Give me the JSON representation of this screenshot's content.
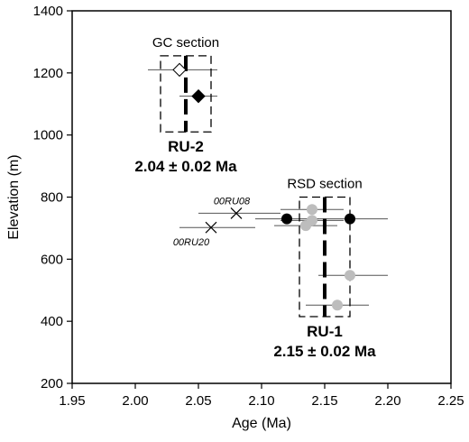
{
  "chart_data": {
    "type": "scatter",
    "xlabel": "Age (Ma)",
    "ylabel": "Elevation (m)",
    "xlim": [
      1.95,
      2.25
    ],
    "ylim": [
      200,
      1400
    ],
    "x_ticks": [
      "1.95",
      "2.00",
      "2.05",
      "2.10",
      "2.15",
      "2.20",
      "2.25"
    ],
    "y_ticks": [
      "200",
      "400",
      "600",
      "800",
      "1000",
      "1200",
      "1400"
    ],
    "grid": false,
    "colors": {
      "black": "#000000",
      "gray": "#bdbdbd",
      "error_bar": "#555555"
    },
    "series": [
      {
        "marker": "open-diamond",
        "points": [
          {
            "x": 2.035,
            "y": 1210,
            "xerr": [
              2.01,
              2.065
            ]
          }
        ]
      },
      {
        "marker": "filled-diamond",
        "points": [
          {
            "x": 2.05,
            "y": 1125,
            "xerr": [
              2.035,
              2.065
            ]
          }
        ]
      },
      {
        "marker": "cross",
        "points": [
          {
            "x": 2.08,
            "y": 748,
            "xerr": [
              2.05,
              2.115
            ],
            "label": "00RU08"
          },
          {
            "x": 2.06,
            "y": 702,
            "xerr": [
              2.035,
              2.095
            ],
            "label": "00RU20"
          }
        ]
      },
      {
        "marker": "black-circle",
        "points": [
          {
            "x": 2.12,
            "y": 730,
            "xerr": [
              2.095,
              2.145
            ]
          },
          {
            "x": 2.17,
            "y": 730,
            "xerr": [
              2.14,
              2.2
            ]
          }
        ]
      },
      {
        "marker": "gray-circle",
        "points": [
          {
            "x": 2.14,
            "y": 760,
            "xerr": [
              2.115,
              2.165
            ]
          },
          {
            "x": 2.135,
            "y": 708,
            "xerr": [
              2.11,
              2.16
            ]
          },
          {
            "x": 2.14,
            "y": 725,
            "xerr": [
              2.115,
              2.165
            ]
          },
          {
            "x": 2.17,
            "y": 548,
            "xerr": [
              2.145,
              2.2
            ]
          },
          {
            "x": 2.16,
            "y": 452,
            "xerr": [
              2.135,
              2.185
            ]
          }
        ]
      }
    ],
    "groups": [
      {
        "box_label": "GC section",
        "name": "RU-2",
        "age_text": "2.04 ± 0.02 Ma",
        "mean": 2.04,
        "mean_band": [
          2.02,
          2.06
        ],
        "box_y": [
          1010,
          1255
        ]
      },
      {
        "box_label": "RSD section",
        "name": "RU-1",
        "age_text": "2.15 ± 0.02 Ma",
        "mean": 2.15,
        "mean_band": [
          2.13,
          2.17
        ],
        "box_y": [
          415,
          800
        ]
      }
    ]
  }
}
